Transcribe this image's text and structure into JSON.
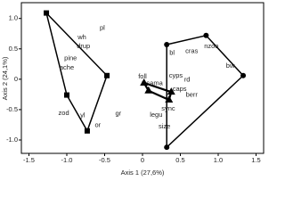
{
  "chart_data": {
    "type": "scatter",
    "xlabel": "Axis 1 (27,6%)",
    "ylabel": "Axis 2 (24,1%)",
    "xlim": [
      -1.6,
      1.6
    ],
    "ylim": [
      -1.22,
      1.26
    ],
    "xticks": [
      -1.5,
      {
        "value": -1.0,
        "label": "-1.0"
      },
      -0.5,
      0,
      0.5,
      {
        "value": 1.0,
        "label": "1.0"
      },
      1.5
    ],
    "yticks": [
      {
        "value": -1.0,
        "label": "-1.0"
      },
      -0.5,
      0,
      0.5,
      {
        "value": 1.0,
        "label": "1.0"
      }
    ],
    "series": [
      {
        "marker": "square",
        "color": "#000000",
        "x": [
          -1.27,
          -0.47,
          -0.73,
          -1.0
        ],
        "y": [
          1.09,
          0.06,
          -0.85,
          -0.26
        ]
      },
      {
        "marker": "circle",
        "color": "#000000",
        "x": [
          0.32,
          0.84,
          1.33,
          0.32
        ],
        "y": [
          0.57,
          0.72,
          0.06,
          -1.12
        ]
      },
      {
        "marker": "triangle",
        "color": "#000000",
        "x": [
          0.02,
          0.38,
          0.35,
          0.08
        ],
        "y": [
          -0.06,
          -0.21,
          -0.34,
          -0.19
        ]
      }
    ],
    "annotations": [
      {
        "text": "pl",
        "x": -0.53,
        "y": 0.84
      },
      {
        "text": "wh",
        "x": -0.8,
        "y": 0.69
      },
      {
        "text": "drup",
        "x": -0.78,
        "y": 0.54
      },
      {
        "text": "pine",
        "x": -0.95,
        "y": 0.34
      },
      {
        "text": "ache",
        "x": -1.0,
        "y": 0.19
      },
      {
        "text": "zod",
        "x": -1.04,
        "y": -0.56
      },
      {
        "text": "yl",
        "x": -0.79,
        "y": -0.6
      },
      {
        "text": "or",
        "x": -0.59,
        "y": -0.76
      },
      {
        "text": "gr",
        "x": -0.32,
        "y": -0.57
      },
      {
        "text": "foll",
        "x": 0,
        "y": 0.04
      },
      {
        "text": "sama",
        "x": 0.16,
        "y": -0.07
      },
      {
        "text": "legu",
        "x": 0.18,
        "y": -0.59
      },
      {
        "text": "sync",
        "x": 0.34,
        "y": -0.49
      },
      {
        "text": "size",
        "x": 0.29,
        "y": -0.78
      },
      {
        "text": "caps",
        "x": 0.49,
        "y": -0.16
      },
      {
        "text": "berr",
        "x": 0.65,
        "y": -0.26
      },
      {
        "text": "rd",
        "x": 0.59,
        "y": -0.01
      },
      {
        "text": "cyps",
        "x": 0.44,
        "y": 0.06
      },
      {
        "text": "bl",
        "x": 0.39,
        "y": 0.43
      },
      {
        "text": "cras",
        "x": 0.65,
        "y": 0.46
      },
      {
        "text": "nzoo",
        "x": 0.91,
        "y": 0.54
      },
      {
        "text": "bw",
        "x": 1.16,
        "y": 0.22
      }
    ]
  }
}
